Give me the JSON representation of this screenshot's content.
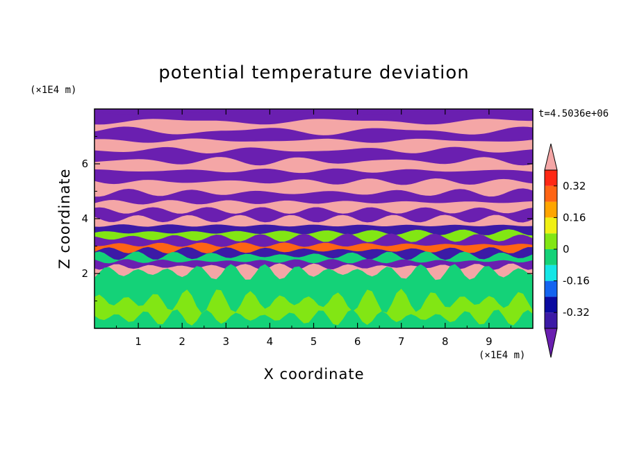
{
  "chart_data": {
    "type": "heatmap",
    "title": "potential temperature deviation",
    "xlabel": "X coordinate",
    "ylabel": "Z coordinate",
    "x_unit": "(×1E4 m)",
    "y_unit": "(×1E4 m)",
    "time_label": "t=4.5036e+06",
    "xlim": [
      0,
      10
    ],
    "ylim": [
      0,
      8
    ],
    "x_ticks": [
      "1",
      "2",
      "3",
      "4",
      "5",
      "6",
      "7",
      "8",
      "9"
    ],
    "y_ticks": [
      "2",
      "4",
      "6"
    ],
    "colorbar": {
      "extend": "both",
      "tick_labels": [
        "0.32",
        "0.16",
        "0",
        "-0.16",
        "-0.32"
      ],
      "tick_values": [
        0.32,
        0.16,
        0,
        -0.16,
        -0.32
      ],
      "levels": [
        -0.4,
        -0.32,
        -0.24,
        -0.16,
        -0.08,
        0,
        0.08,
        0.16,
        0.24,
        0.32,
        0.4
      ],
      "colors": [
        "#6a1fb0",
        "#3c1aa6",
        "#0a0aa0",
        "#1464f0",
        "#14e6e6",
        "#14d278",
        "#82e614",
        "#f0f014",
        "#ffa500",
        "#ff6414",
        "#ff2814",
        "#f4a6a6"
      ]
    },
    "bands": [
      {
        "y": 7.88,
        "color": "#6a1fb0"
      },
      {
        "y": 7.55,
        "color": "#f4a6a6"
      },
      {
        "y": 7.2,
        "color": "#6a1fb0"
      },
      {
        "y": 6.85,
        "color": "#f4a6a6"
      },
      {
        "y": 6.5,
        "color": "#6a1fb0"
      },
      {
        "y": 6.1,
        "color": "#f4a6a6"
      },
      {
        "y": 5.75,
        "color": "#6a1fb0"
      },
      {
        "y": 5.35,
        "color": "#f4a6a6"
      },
      {
        "y": 4.95,
        "color": "#6a1fb0"
      },
      {
        "y": 4.6,
        "color": "#f4a6a6"
      },
      {
        "y": 4.3,
        "color": "#6a1fb0"
      },
      {
        "y": 4.0,
        "color": "#f4a6a6"
      },
      {
        "y": 3.75,
        "color": "#3c1aa6"
      },
      {
        "y": 3.5,
        "color": "#82e614"
      },
      {
        "y": 3.3,
        "color": "#6a1fb0"
      },
      {
        "y": 3.05,
        "color": "#ff6414"
      },
      {
        "y": 2.85,
        "color": "#3c1aa6"
      },
      {
        "y": 2.65,
        "color": "#14d278"
      },
      {
        "y": 2.45,
        "color": "#6a1fb0"
      },
      {
        "y": 2.25,
        "color": "#f4a6a6"
      },
      {
        "y": 2.05,
        "color": "#14d278"
      },
      {
        "y": 1.0,
        "color": "#82e614"
      },
      {
        "y": 0.4,
        "color": "#14d278"
      }
    ]
  }
}
